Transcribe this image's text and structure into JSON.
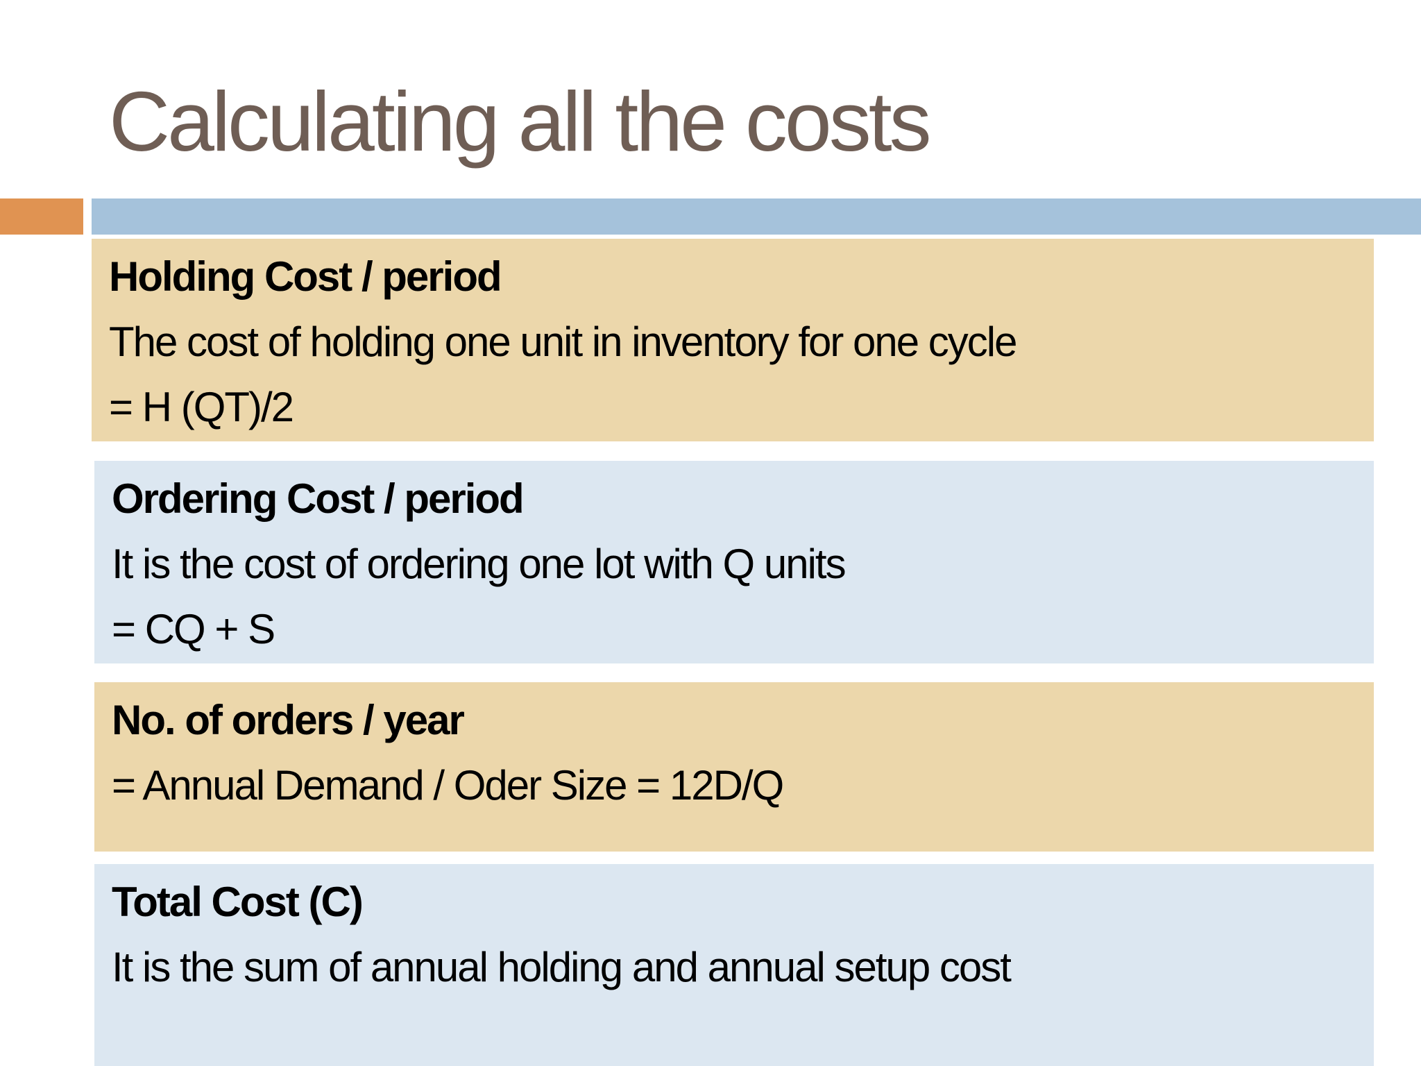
{
  "colors": {
    "title": "#6f5e55",
    "accent_orange": "#e09352",
    "accent_blue": "#a5c2db",
    "box_tan": "#ecd7ab",
    "box_blue": "#dce7f1"
  },
  "slide": {
    "title": "Calculating all the costs"
  },
  "boxes": [
    {
      "heading": "Holding Cost / period",
      "lines": [
        "The cost of holding one unit in inventory for one cycle",
        "= H (QT)/2"
      ]
    },
    {
      "heading": "Ordering Cost / period",
      "lines": [
        "It is the cost of ordering one lot with Q units",
        "= CQ + S"
      ]
    },
    {
      "heading": "No. of orders / year",
      "lines": [
        "= Annual Demand / Oder Size = 12D/Q"
      ]
    },
    {
      "heading": "Total Cost (C)",
      "lines": [
        "It is the sum of annual holding and annual setup cost"
      ]
    }
  ]
}
